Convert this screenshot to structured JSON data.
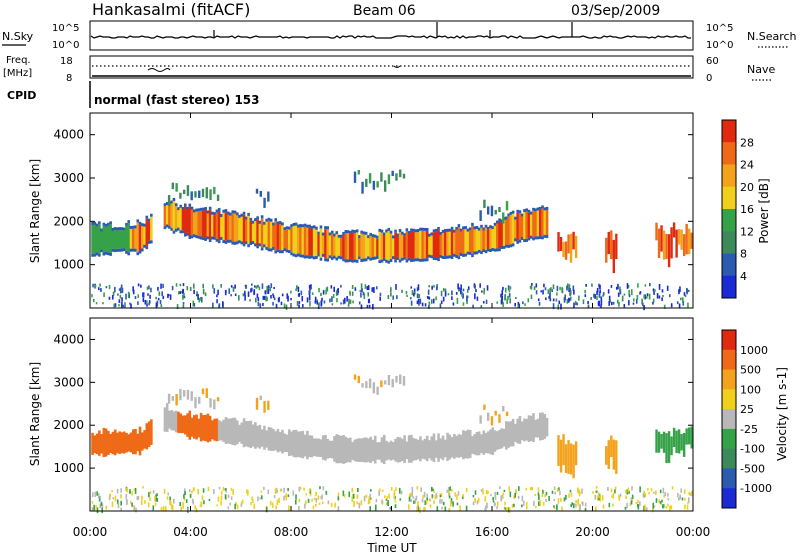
{
  "header": {
    "station": "Hankasalmi (fitACF)",
    "beam": "Beam 06",
    "date": "03/Sep/2009"
  },
  "noise_panel": {
    "left_label": "N.Sky",
    "right_label": "N.Search",
    "y_top": "10^5",
    "y_bottom": "10^0"
  },
  "freq_panel": {
    "left_label_1": "Freq.",
    "left_label_2": "[MHz]",
    "left_top": "18",
    "left_bottom": "8",
    "right_label": "Nave",
    "right_top": "60",
    "right_bottom": "0"
  },
  "cpid_panel": {
    "label": "CPID",
    "text": "normal (fast stereo) 153"
  },
  "time_axis": {
    "label": "Time UT",
    "ticks": [
      "00:00",
      "04:00",
      "08:00",
      "12:00",
      "16:00",
      "20:00",
      "00:00"
    ]
  },
  "colors": {
    "power": [
      "#1a2bd6",
      "#2b5bb0",
      "#3c8a5a",
      "#36a248",
      "#f0d01a",
      "#f3a21c",
      "#ef6a16",
      "#e02a10"
    ],
    "velocity": [
      "#1a2bd6",
      "#2b5bb0",
      "#3c8a5a",
      "#36a248",
      "#b8b8b8",
      "#f0d01a",
      "#f3a21c",
      "#ef6a16",
      "#e02a10"
    ]
  },
  "chart_data": [
    {
      "type": "heatmap",
      "panel": "power",
      "xlabel": "Time UT",
      "ylabel": "Slant Range [km]",
      "x_ticks": [
        "00:00",
        "04:00",
        "08:00",
        "12:00",
        "16:00",
        "20:00",
        "00:00"
      ],
      "y_ticks": [
        "1000",
        "2000",
        "3000",
        "4000"
      ],
      "ylim": [
        0,
        4500
      ],
      "colorbar": {
        "label": "Power [dB]",
        "tick_labels": [
          "4",
          "8",
          "12",
          "16",
          "20",
          "24",
          "28"
        ],
        "range": [
          0,
          32
        ]
      },
      "main_echo_band_range_km": [
        [
          0,
          1500
        ],
        [
          2,
          1550
        ],
        [
          3,
          2100
        ],
        [
          4,
          1900
        ],
        [
          6,
          1750
        ],
        [
          8,
          1500
        ],
        [
          10,
          1350
        ],
        [
          12,
          1350
        ],
        [
          14,
          1400
        ],
        [
          16,
          1550
        ],
        [
          17,
          1800
        ],
        [
          18,
          1900
        ]
      ]
    },
    {
      "type": "heatmap",
      "panel": "velocity",
      "xlabel": "Time UT",
      "ylabel": "Slant Range [km]",
      "x_ticks": [
        "00:00",
        "04:00",
        "08:00",
        "12:00",
        "16:00",
        "20:00",
        "00:00"
      ],
      "y_ticks": [
        "1000",
        "2000",
        "3000",
        "4000"
      ],
      "ylim": [
        0,
        4500
      ],
      "colorbar": {
        "label": "Velocity [m s-1]",
        "tick_labels": [
          "1000",
          "500",
          "100",
          "25",
          "-25",
          "-100",
          "-500",
          "-1000"
        ]
      }
    }
  ]
}
